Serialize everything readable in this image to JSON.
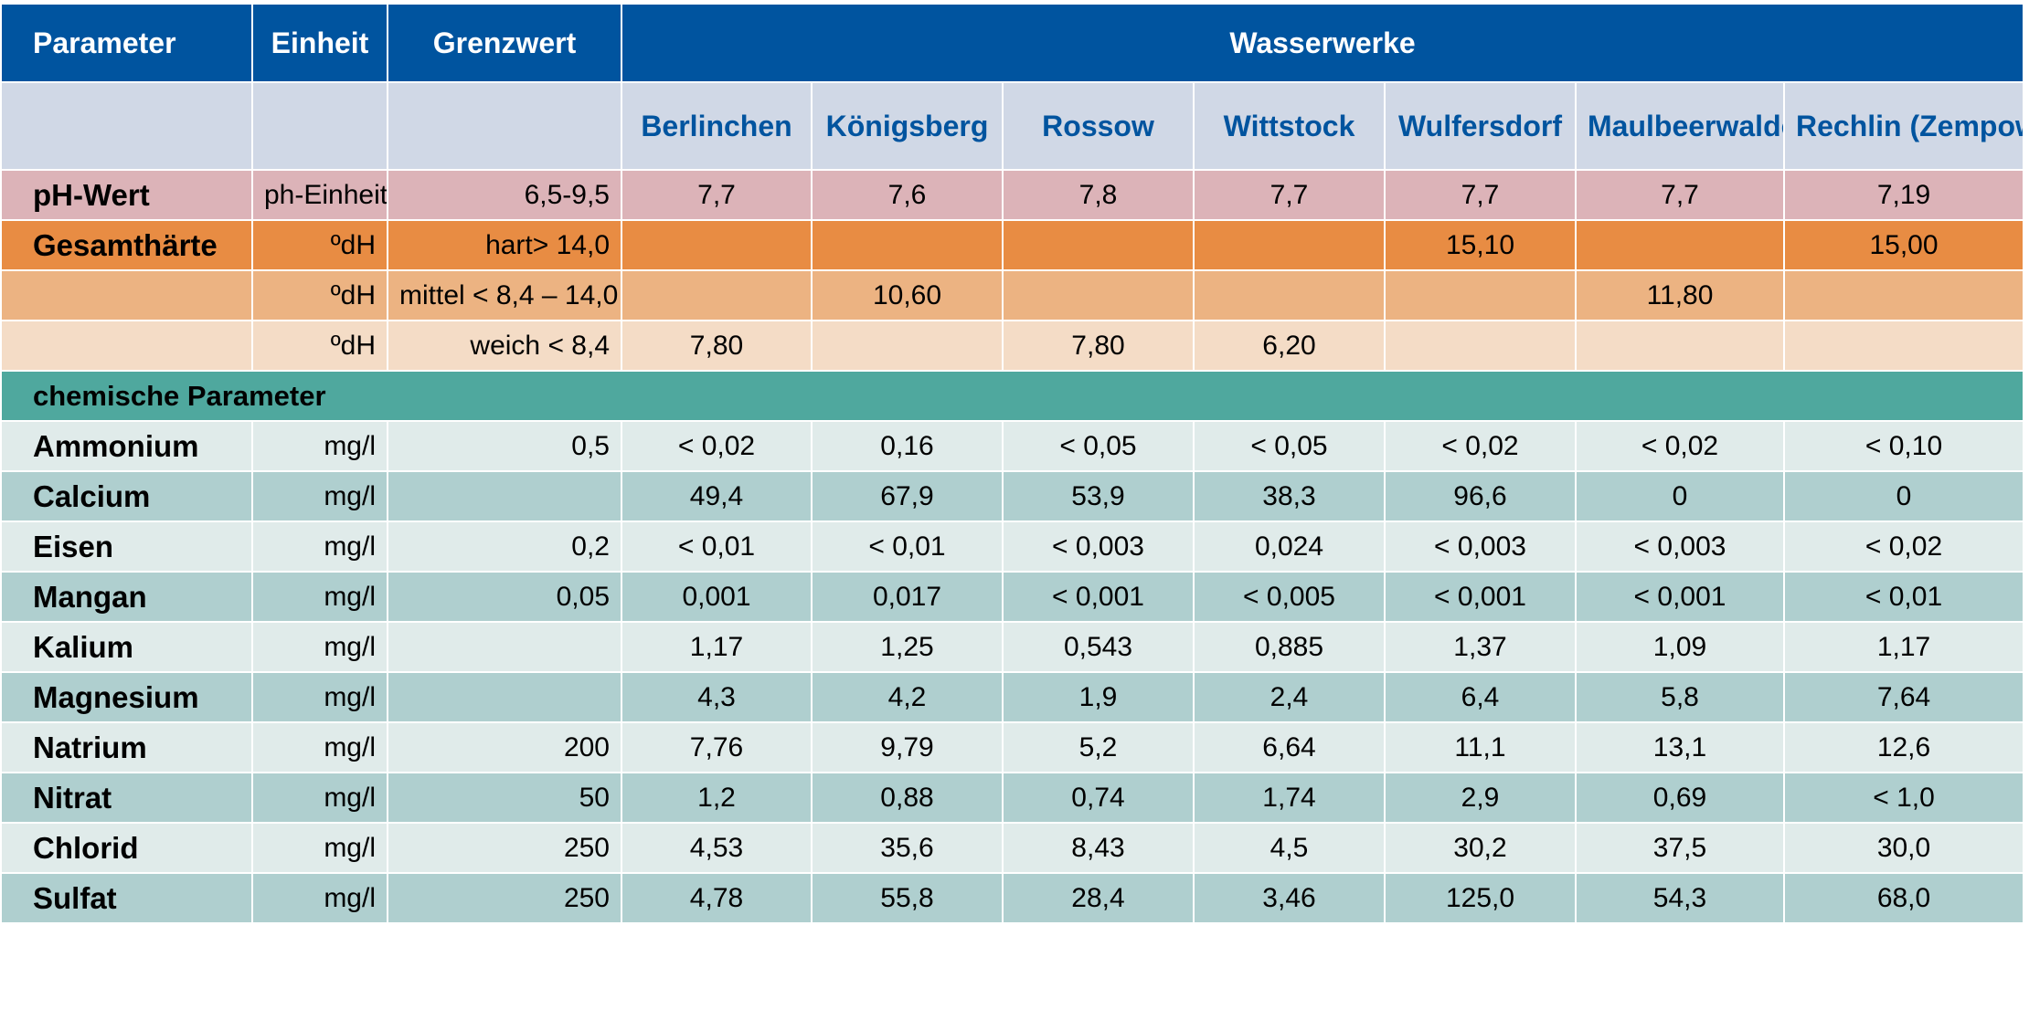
{
  "header": {
    "parameter": "Parameter",
    "einheit": "Einheit",
    "grenzwert": "Grenzwert",
    "wasserwerke": "Wasserwerke",
    "werke": [
      "Berlinchen",
      "Königsberg",
      "Rossow",
      "Wittstock",
      "Wulfersdorf",
      "Maulbeerwalde",
      "Rechlin (Zempow)"
    ]
  },
  "ph": {
    "label": "pH-Wert",
    "unit": "ph-Einheit",
    "limit": "6,5-9,5",
    "values": [
      "7,7",
      "7,6",
      "7,8",
      "7,7",
      "7,7",
      "7,7",
      "7,19"
    ]
  },
  "haerte": [
    {
      "label": "Gesamthärte",
      "unit": "ºdH",
      "limit": "hart> 14,0",
      "values": [
        "",
        "",
        "",
        "",
        "15,10",
        "",
        "15,00"
      ]
    },
    {
      "label": "",
      "unit": "ºdH",
      "limit": "mittel < 8,4 – 14,0",
      "values": [
        "",
        "10,60",
        "",
        "",
        "",
        "11,80",
        ""
      ]
    },
    {
      "label": "",
      "unit": "ºdH",
      "limit": "weich < 8,4",
      "values": [
        "7,80",
        "",
        "7,80",
        "6,20",
        "",
        "",
        ""
      ]
    }
  ],
  "section_chem": "chemische Parameter",
  "chem": [
    {
      "label": "Ammonium",
      "unit": "mg/l",
      "limit": "0,5",
      "values": [
        "< 0,02",
        "0,16",
        "< 0,05",
        "< 0,05",
        "< 0,02",
        "< 0,02",
        "< 0,10"
      ]
    },
    {
      "label": "Calcium",
      "unit": "mg/l",
      "limit": "",
      "values": [
        "49,4",
        "67,9",
        "53,9",
        "38,3",
        "96,6",
        "0",
        "0"
      ]
    },
    {
      "label": "Eisen",
      "unit": "mg/l",
      "limit": "0,2",
      "values": [
        "< 0,01",
        "< 0,01",
        "< 0,003",
        "0,024",
        "< 0,003",
        "< 0,003",
        "< 0,02"
      ]
    },
    {
      "label": "Mangan",
      "unit": "mg/l",
      "limit": "0,05",
      "values": [
        "0,001",
        "0,017",
        "< 0,001",
        "< 0,005",
        "< 0,001",
        "< 0,001",
        "< 0,01"
      ]
    },
    {
      "label": "Kalium",
      "unit": "mg/l",
      "limit": "",
      "values": [
        "1,17",
        "1,25",
        "0,543",
        "0,885",
        "1,37",
        "1,09",
        "1,17"
      ]
    },
    {
      "label": "Magnesium",
      "unit": "mg/l",
      "limit": "",
      "values": [
        "4,3",
        "4,2",
        "1,9",
        "2,4",
        "6,4",
        "5,8",
        "7,64"
      ]
    },
    {
      "label": "Natrium",
      "unit": "mg/l",
      "limit": "200",
      "values": [
        "7,76",
        "9,79",
        "5,2",
        "6,64",
        "11,1",
        "13,1",
        "12,6"
      ]
    },
    {
      "label": "Nitrat",
      "unit": "mg/l",
      "limit": "50",
      "values": [
        "1,2",
        "0,88",
        "0,74",
        "1,74",
        "2,9",
        "0,69",
        "< 1,0"
      ]
    },
    {
      "label": "Chlorid",
      "unit": "mg/l",
      "limit": "250",
      "values": [
        "4,53",
        "35,6",
        "8,43",
        "4,5",
        "30,2",
        "37,5",
        "30,0"
      ]
    },
    {
      "label": "Sulfat",
      "unit": "mg/l",
      "limit": "250",
      "values": [
        "4,78",
        "55,8",
        "28,4",
        "3,46",
        "125,0",
        "54,3",
        "68,0"
      ]
    }
  ]
}
